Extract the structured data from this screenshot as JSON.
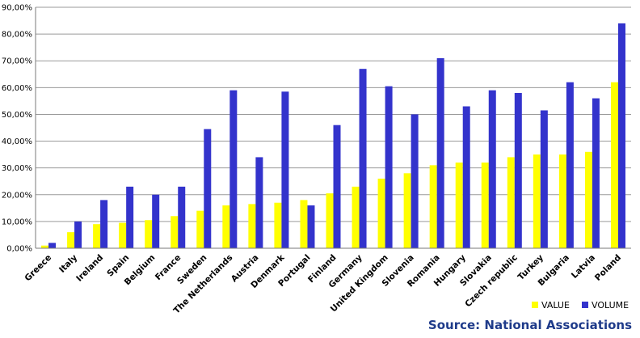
{
  "chart_data": {
    "type": "bar",
    "categories": [
      "Greece",
      "Italy",
      "Ireland",
      "Spain",
      "Belgium",
      "France",
      "Sweden",
      "The Netherlands",
      "Austria",
      "Denmark",
      "Portugal",
      "Finland",
      "Germany",
      "United Kingdom",
      "Slovenia",
      "Romania",
      "Hungary",
      "Slovakia",
      "Czech republic",
      "Turkey",
      "Bulgaria",
      "Latvia",
      "Poland"
    ],
    "series": [
      {
        "name": "VALUE",
        "color": "#ffff00",
        "values": [
          1,
          6,
          9,
          9.5,
          10.5,
          12,
          14,
          16,
          16.5,
          17,
          18,
          20.5,
          23,
          26,
          28,
          31,
          32,
          32,
          34,
          35,
          35,
          36,
          62
        ]
      },
      {
        "name": "VOLUME",
        "color": "#3333cc",
        "values": [
          2,
          10,
          18,
          23,
          20,
          23,
          44.5,
          59,
          34,
          58.5,
          16,
          46,
          67,
          60.5,
          50,
          71,
          53,
          59,
          58,
          51.5,
          62,
          56,
          84
        ]
      }
    ],
    "yticks": [
      "0,00%",
      "10,00%",
      "20,00%",
      "30,00%",
      "40,00%",
      "50,00%",
      "60,00%",
      "70,00%",
      "80,00%",
      "90,00%"
    ],
    "ylim": [
      0,
      90
    ],
    "grid": true,
    "legend": "bottom-right"
  },
  "source": "Source: National Associations"
}
